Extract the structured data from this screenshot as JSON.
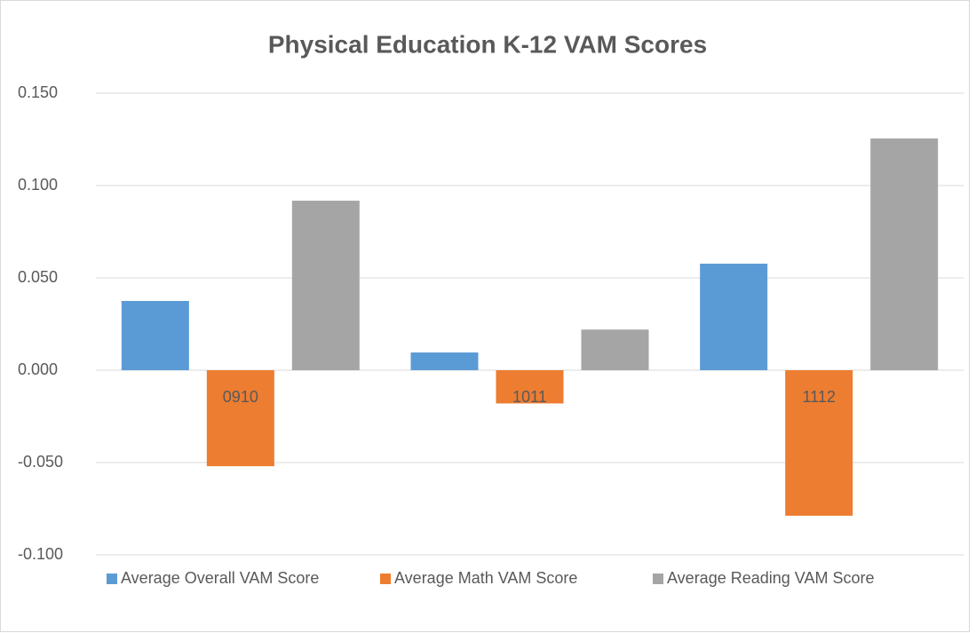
{
  "chart_data": {
    "type": "bar",
    "title": "Physical Education K-12  VAM Scores",
    "categories": [
      "0910",
      "1011",
      "1112"
    ],
    "series": [
      {
        "name": "Average Overall VAM Score",
        "color": "#5b9bd5",
        "values": [
          0.0375,
          0.0096,
          0.0577
        ]
      },
      {
        "name": "Average Math VAM Score",
        "color": "#ed7d31",
        "values": [
          -0.052,
          -0.018,
          -0.0788
        ]
      },
      {
        "name": "Average Reading VAM Score",
        "color": "#a5a5a5",
        "values": [
          0.0918,
          0.022,
          0.1255
        ]
      }
    ],
    "ylim": [
      -0.1,
      0.15
    ],
    "yticks": [
      {
        "value": -0.1,
        "label": "-0.100"
      },
      {
        "value": -0.05,
        "label": "-0.050"
      },
      {
        "value": 0,
        "label": "0.000"
      },
      {
        "value": 0.05,
        "label": "0.050"
      },
      {
        "value": 0.1,
        "label": "0.100"
      },
      {
        "value": 0.15,
        "label": "0.150"
      }
    ],
    "grid": true,
    "legend": "bottom"
  }
}
